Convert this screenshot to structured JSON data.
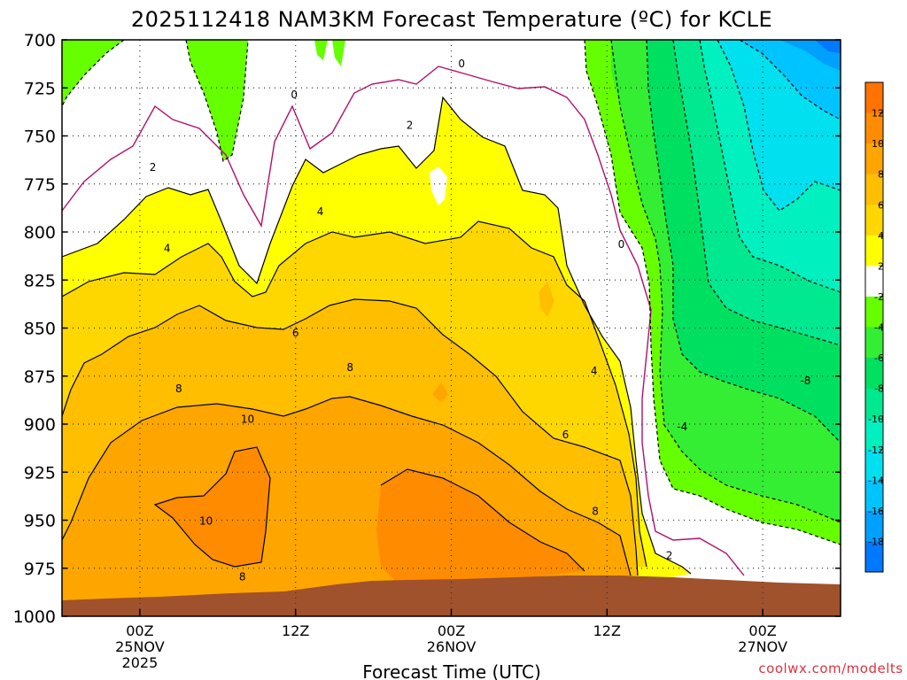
{
  "chart_data": {
    "type": "heatmap",
    "title": "2025112418 NAM3KM Forecast Temperature (ºC) for KCLE",
    "xlabel": "Forecast Time (UTC)",
    "y_ticks": [
      700,
      725,
      750,
      775,
      800,
      825,
      850,
      875,
      900,
      925,
      950,
      975,
      1000
    ],
    "ylim": [
      700,
      1000
    ],
    "y_scale": "pressure (hPa), inverted",
    "x_ticks": [
      {
        "hour": 6,
        "lines": [
          "00Z",
          "25NOV",
          "2025"
        ]
      },
      {
        "hour": 18,
        "lines": [
          "12Z"
        ]
      },
      {
        "hour": 30,
        "lines": [
          "00Z",
          "26NOV"
        ]
      },
      {
        "hour": 42,
        "lines": [
          "12Z"
        ]
      },
      {
        "hour": 54,
        "lines": [
          "00Z",
          "27NOV"
        ]
      }
    ],
    "xlim": [
      0,
      60
    ],
    "grid": true,
    "colorbar": {
      "placement": "right",
      "labels": [
        "12",
        "10",
        "8",
        "6",
        "4",
        "2",
        "-2",
        "-4",
        "-6",
        "-8",
        "-10",
        "-12",
        "-14",
        "-16",
        "-18"
      ],
      "bands": [
        {
          "range": [
            12,
            14
          ],
          "color": "#ff7300"
        },
        {
          "range": [
            10,
            12
          ],
          "color": "#ff8c00"
        },
        {
          "range": [
            8,
            10
          ],
          "color": "#ffa500"
        },
        {
          "range": [
            6,
            8
          ],
          "color": "#ffbe00"
        },
        {
          "range": [
            4,
            6
          ],
          "color": "#ffd700"
        },
        {
          "range": [
            2,
            4
          ],
          "color": "#ffff00"
        },
        {
          "range": [
            -2,
            2
          ],
          "color": "#ffffff"
        },
        {
          "range": [
            -4,
            -2
          ],
          "color": "#66ff00"
        },
        {
          "range": [
            -6,
            -4
          ],
          "color": "#33ee33"
        },
        {
          "range": [
            -8,
            -6
          ],
          "color": "#00e060"
        },
        {
          "range": [
            -10,
            -8
          ],
          "color": "#00e890"
        },
        {
          "range": [
            -12,
            -10
          ],
          "color": "#00f0c0"
        },
        {
          "range": [
            -14,
            -12
          ],
          "color": "#00e0ee"
        },
        {
          "range": [
            -16,
            -14
          ],
          "color": "#00c4ff"
        },
        {
          "range": [
            -18,
            -16
          ],
          "color": "#00a0ff"
        },
        {
          "range": [
            -20,
            -18
          ],
          "color": "#0078ff"
        }
      ]
    },
    "contour_labels": [
      {
        "text": "0",
        "hour": 30.8,
        "p": 712
      },
      {
        "text": "0",
        "hour": 17.9,
        "p": 728
      },
      {
        "text": "0",
        "hour": 43.1,
        "p": 806
      },
      {
        "text": "2",
        "hour": 26.8,
        "p": 744
      },
      {
        "text": "2",
        "hour": 7.0,
        "p": 766
      },
      {
        "text": "2",
        "hour": 46.8,
        "p": 968
      },
      {
        "text": "4",
        "hour": 19.9,
        "p": 789
      },
      {
        "text": "4",
        "hour": 8.1,
        "p": 808
      },
      {
        "text": "4",
        "hour": 41.0,
        "p": 872
      },
      {
        "text": "-4",
        "hour": 47.8,
        "p": 901
      },
      {
        "text": "-8",
        "hour": 57.3,
        "p": 877
      },
      {
        "text": "6",
        "hour": 18.0,
        "p": 852
      },
      {
        "text": "6",
        "hour": 38.8,
        "p": 905
      },
      {
        "text": "8",
        "hour": 9.0,
        "p": 881
      },
      {
        "text": "8",
        "hour": 22.2,
        "p": 870
      },
      {
        "text": "8",
        "hour": 41.1,
        "p": 945
      },
      {
        "text": "8",
        "hour": 13.9,
        "p": 979
      },
      {
        "text": "10",
        "hour": 14.3,
        "p": 897
      },
      {
        "text": "10",
        "hour": 11.1,
        "p": 950
      }
    ],
    "surface_color": "#a0522d",
    "credit": "coolwx.com/modelts"
  }
}
